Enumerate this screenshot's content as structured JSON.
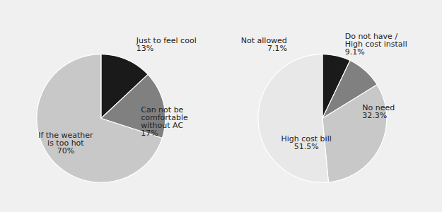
{
  "chart_data": [
    {
      "type": "pie",
      "categories": [
        "Just to feel cool\n13%",
        "Can not be\ncomfortable\nwithout AC\n17%",
        "If the weather\nis too hot\n70%"
      ],
      "values": [
        13,
        17,
        70
      ],
      "colors": [
        "#1a1a1a",
        "#808080",
        "#c8c8c8"
      ]
    },
    {
      "type": "pie",
      "categories": [
        "Not allowed\n7.1%",
        "Do not have /\nHigh cost install\n9.1%",
        "No need\n32.3%",
        "High cost bill\n51.5%"
      ],
      "values": [
        7.1,
        9.1,
        32.3,
        51.5
      ],
      "colors": [
        "#1a1a1a",
        "#808080",
        "#c8c8c8",
        "#e8e8e8"
      ]
    }
  ]
}
